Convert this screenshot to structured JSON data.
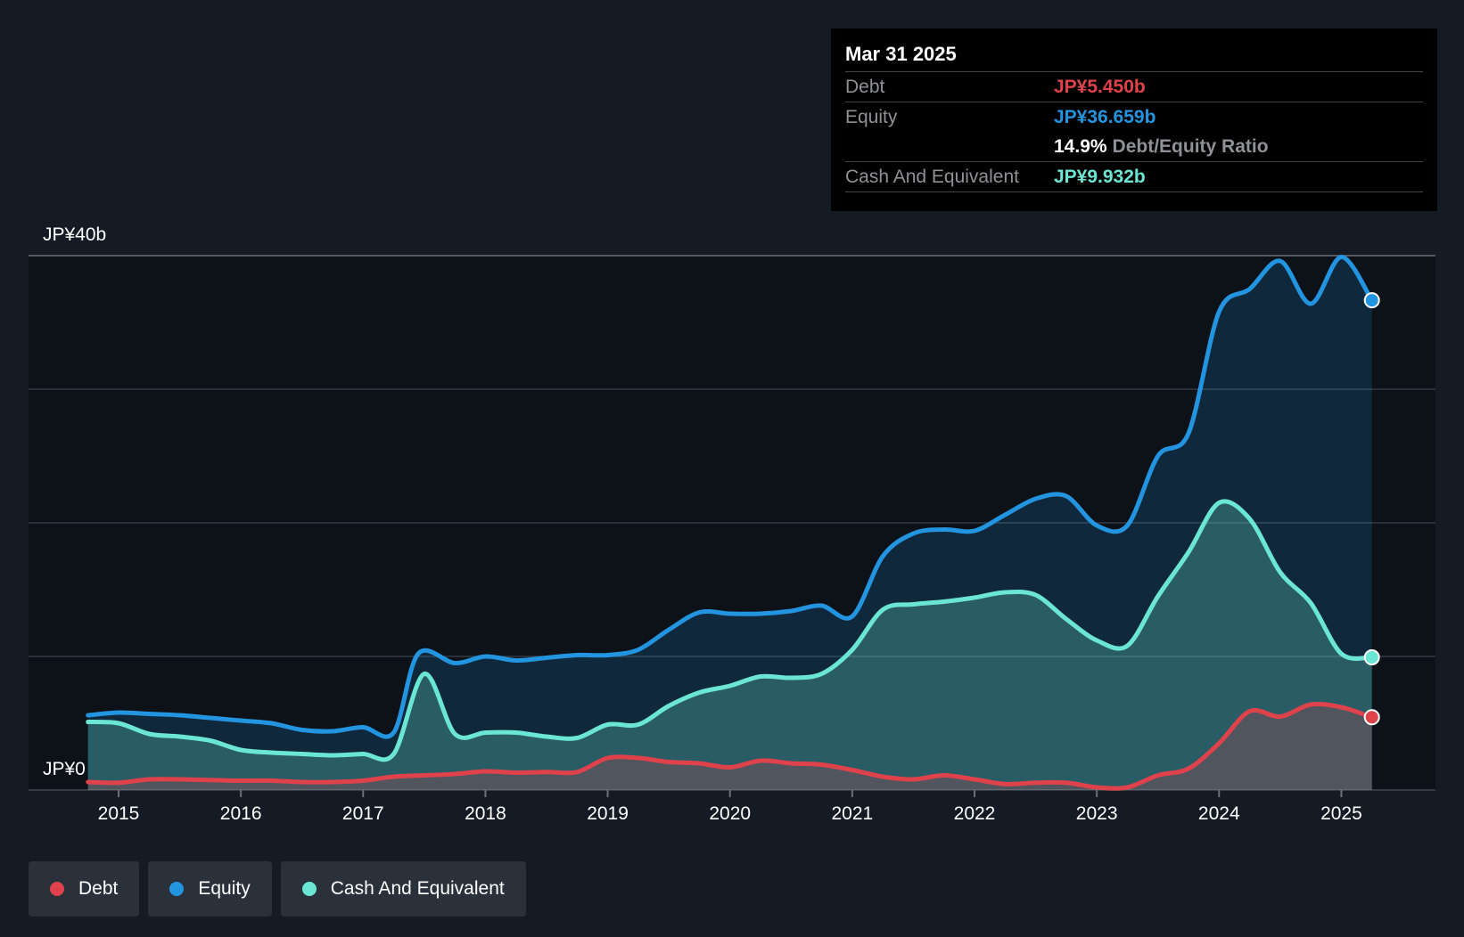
{
  "tooltip": {
    "date": "Mar 31 2025",
    "debt_label": "Debt",
    "debt_value": "JP¥5.450b",
    "equity_label": "Equity",
    "equity_value": "JP¥36.659b",
    "ratio_value": "14.9%",
    "ratio_label": "Debt/Equity Ratio",
    "cash_label": "Cash And Equivalent",
    "cash_value": "JP¥9.932b"
  },
  "legend": {
    "debt": "Debt",
    "equity": "Equity",
    "cash": "Cash And Equivalent"
  },
  "colors": {
    "debt": "#e0424b",
    "equity": "#2394df",
    "cash": "#6ce6d4",
    "background": "#151b24"
  },
  "chart_data": {
    "type": "area",
    "y_top_label": "JP¥40b",
    "y_bottom_label": "JP¥0",
    "ylim": [
      0,
      40
    ],
    "xlim": [
      2014.3,
      2025.25
    ],
    "x_ticks": [
      2015,
      2016,
      2017,
      2018,
      2019,
      2020,
      2021,
      2022,
      2023,
      2024,
      2025
    ],
    "x_tick_labels": [
      "2015",
      "2016",
      "2017",
      "2018",
      "2019",
      "2020",
      "2021",
      "2022",
      "2023",
      "2024",
      "2025"
    ],
    "grid": true,
    "series": [
      {
        "name": "Equity",
        "key": "equity",
        "points": [
          [
            2014.75,
            5.6
          ],
          [
            2015.0,
            5.8
          ],
          [
            2015.25,
            5.7
          ],
          [
            2015.5,
            5.6
          ],
          [
            2015.75,
            5.4
          ],
          [
            2016.0,
            5.2
          ],
          [
            2016.25,
            5.0
          ],
          [
            2016.5,
            4.5
          ],
          [
            2016.75,
            4.4
          ],
          [
            2017.0,
            4.7
          ],
          [
            2017.25,
            4.3
          ],
          [
            2017.45,
            10.2
          ],
          [
            2017.75,
            9.5
          ],
          [
            2018.0,
            10.0
          ],
          [
            2018.25,
            9.7
          ],
          [
            2018.5,
            9.9
          ],
          [
            2018.75,
            10.1
          ],
          [
            2019.0,
            10.1
          ],
          [
            2019.25,
            10.5
          ],
          [
            2019.5,
            12.0
          ],
          [
            2019.75,
            13.3
          ],
          [
            2020.0,
            13.2
          ],
          [
            2020.25,
            13.2
          ],
          [
            2020.5,
            13.4
          ],
          [
            2020.75,
            13.8
          ],
          [
            2021.0,
            13.0
          ],
          [
            2021.25,
            17.5
          ],
          [
            2021.5,
            19.2
          ],
          [
            2021.75,
            19.5
          ],
          [
            2022.0,
            19.4
          ],
          [
            2022.25,
            20.6
          ],
          [
            2022.5,
            21.8
          ],
          [
            2022.75,
            22.0
          ],
          [
            2023.0,
            19.8
          ],
          [
            2023.25,
            19.8
          ],
          [
            2023.5,
            25.0
          ],
          [
            2023.75,
            26.7
          ],
          [
            2024.0,
            35.8
          ],
          [
            2024.25,
            37.5
          ],
          [
            2024.5,
            39.6
          ],
          [
            2024.75,
            36.4
          ],
          [
            2025.0,
            39.9
          ],
          [
            2025.25,
            36.659
          ]
        ]
      },
      {
        "name": "Cash And Equivalent",
        "key": "cash",
        "points": [
          [
            2014.75,
            5.1
          ],
          [
            2015.0,
            5.0
          ],
          [
            2015.25,
            4.2
          ],
          [
            2015.5,
            4.0
          ],
          [
            2015.75,
            3.7
          ],
          [
            2016.0,
            3.0
          ],
          [
            2016.25,
            2.8
          ],
          [
            2016.5,
            2.7
          ],
          [
            2016.75,
            2.6
          ],
          [
            2017.0,
            2.7
          ],
          [
            2017.25,
            2.7
          ],
          [
            2017.5,
            8.7
          ],
          [
            2017.75,
            4.2
          ],
          [
            2018.0,
            4.3
          ],
          [
            2018.25,
            4.3
          ],
          [
            2018.5,
            4.0
          ],
          [
            2018.75,
            3.9
          ],
          [
            2019.0,
            4.9
          ],
          [
            2019.25,
            4.9
          ],
          [
            2019.5,
            6.3
          ],
          [
            2019.75,
            7.3
          ],
          [
            2020.0,
            7.8
          ],
          [
            2020.25,
            8.5
          ],
          [
            2020.5,
            8.4
          ],
          [
            2020.75,
            8.7
          ],
          [
            2021.0,
            10.5
          ],
          [
            2021.25,
            13.5
          ],
          [
            2021.5,
            13.9
          ],
          [
            2021.75,
            14.1
          ],
          [
            2022.0,
            14.4
          ],
          [
            2022.25,
            14.8
          ],
          [
            2022.5,
            14.6
          ],
          [
            2022.75,
            12.8
          ],
          [
            2023.0,
            11.2
          ],
          [
            2023.25,
            10.8
          ],
          [
            2023.5,
            14.5
          ],
          [
            2023.75,
            17.8
          ],
          [
            2024.0,
            21.5
          ],
          [
            2024.25,
            20.3
          ],
          [
            2024.5,
            16.3
          ],
          [
            2024.75,
            14.0
          ],
          [
            2025.0,
            10.2
          ],
          [
            2025.25,
            9.932
          ]
        ]
      },
      {
        "name": "Debt",
        "key": "debt",
        "points": [
          [
            2014.75,
            0.6
          ],
          [
            2015.0,
            0.55
          ],
          [
            2015.25,
            0.8
          ],
          [
            2015.5,
            0.8
          ],
          [
            2015.75,
            0.75
          ],
          [
            2016.0,
            0.7
          ],
          [
            2016.25,
            0.7
          ],
          [
            2016.5,
            0.6
          ],
          [
            2016.75,
            0.6
          ],
          [
            2017.0,
            0.7
          ],
          [
            2017.25,
            1.0
          ],
          [
            2017.5,
            1.1
          ],
          [
            2017.75,
            1.2
          ],
          [
            2018.0,
            1.4
          ],
          [
            2018.25,
            1.3
          ],
          [
            2018.5,
            1.35
          ],
          [
            2018.75,
            1.35
          ],
          [
            2019.0,
            2.4
          ],
          [
            2019.25,
            2.4
          ],
          [
            2019.5,
            2.1
          ],
          [
            2019.75,
            2.0
          ],
          [
            2020.0,
            1.7
          ],
          [
            2020.25,
            2.2
          ],
          [
            2020.5,
            2.0
          ],
          [
            2020.75,
            1.9
          ],
          [
            2021.0,
            1.5
          ],
          [
            2021.25,
            1.0
          ],
          [
            2021.5,
            0.8
          ],
          [
            2021.75,
            1.1
          ],
          [
            2022.0,
            0.8
          ],
          [
            2022.25,
            0.45
          ],
          [
            2022.5,
            0.55
          ],
          [
            2022.75,
            0.55
          ],
          [
            2023.0,
            0.2
          ],
          [
            2023.25,
            0.2
          ],
          [
            2023.5,
            1.1
          ],
          [
            2023.75,
            1.6
          ],
          [
            2024.0,
            3.5
          ],
          [
            2024.25,
            5.9
          ],
          [
            2024.5,
            5.5
          ],
          [
            2024.75,
            6.4
          ],
          [
            2025.0,
            6.2
          ],
          [
            2025.25,
            5.45
          ]
        ]
      }
    ]
  }
}
